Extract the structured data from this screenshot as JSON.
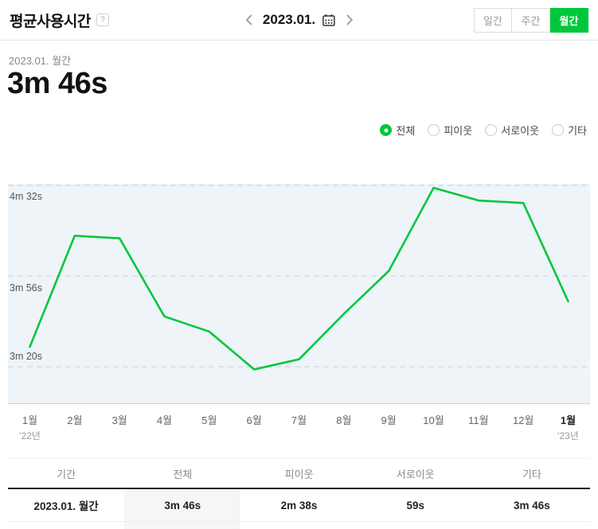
{
  "header": {
    "title": "평균사용시간",
    "help": "?",
    "date_nav": {
      "date": "2023.01."
    },
    "tabs": [
      {
        "label": "일간",
        "active": false
      },
      {
        "label": "주간",
        "active": false
      },
      {
        "label": "월간",
        "active": true
      }
    ]
  },
  "summary": {
    "period": "2023.01. 월간",
    "value": "3m 46s"
  },
  "filters": [
    {
      "label": "전체",
      "selected": true
    },
    {
      "label": "피이웃",
      "selected": false
    },
    {
      "label": "서로이웃",
      "selected": false
    },
    {
      "label": "기타",
      "selected": false
    }
  ],
  "chart_data": {
    "type": "line",
    "title": "평균사용시간",
    "x_labels": [
      "1월",
      "2월",
      "3월",
      "4월",
      "5월",
      "6월",
      "7월",
      "8월",
      "9월",
      "10월",
      "11월",
      "12월",
      "1월"
    ],
    "x_year_first": "'22년",
    "x_year_last": "'23년",
    "values_seconds": [
      208,
      252,
      251,
      220,
      214,
      199,
      203,
      221,
      238,
      271,
      266,
      265,
      226
    ],
    "y_ticks": [
      {
        "label": "4m 32s",
        "seconds": 272
      },
      {
        "label": "3m 56s",
        "seconds": 236
      },
      {
        "label": "3m 20s",
        "seconds": 200
      }
    ],
    "ylim_seconds": [
      185,
      273
    ],
    "line_color": "#00c73c",
    "plot_bg": "#eef4f8",
    "grid": "dashed",
    "legend": "none"
  },
  "table": {
    "headers": [
      "기간",
      "전체",
      "피이웃",
      "서로이웃",
      "기타"
    ],
    "rows": [
      [
        "2023.01. 월간",
        "3m 46s",
        "2m 38s",
        "59s",
        "3m 46s"
      ]
    ],
    "highlighted_column_index": 1
  },
  "colors": {
    "accent_green": "#00c73c"
  }
}
